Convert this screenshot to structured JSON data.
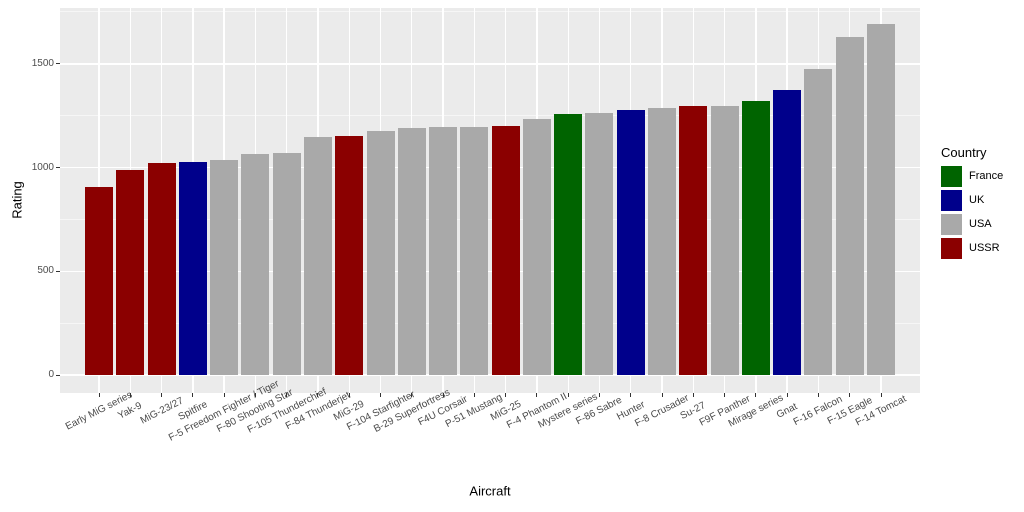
{
  "style": {
    "figure_bg": "#ffffff",
    "panel_bg": "#ebebeb",
    "grid_color": "#ffffff",
    "tick_label_color": "#4d4d4d",
    "axis_title_color": "#000000"
  },
  "chart_data": {
    "type": "bar",
    "title": "",
    "xlabel": "Aircraft",
    "ylabel": "Rating",
    "ylim": [
      0,
      1770
    ],
    "yticks": [
      0,
      500,
      1000,
      1500
    ],
    "yticks_minor": [
      250,
      750,
      1250,
      1750
    ],
    "grid": true,
    "legend": {
      "title": "Country",
      "position": "right",
      "entries": [
        {
          "label": "France",
          "color": "#006400"
        },
        {
          "label": "UK",
          "color": "#00008b"
        },
        {
          "label": "USA",
          "color": "#a9a9a9"
        },
        {
          "label": "USSR",
          "color": "#8b0000"
        }
      ]
    },
    "bars": [
      {
        "aircraft": "Early MiG series",
        "country": "USSR",
        "rating": 905
      },
      {
        "aircraft": "Yak-9",
        "country": "USSR",
        "rating": 990
      },
      {
        "aircraft": "MiG-23/27",
        "country": "USSR",
        "rating": 1020
      },
      {
        "aircraft": "Spitfire",
        "country": "UK",
        "rating": 1025
      },
      {
        "aircraft": "F-5 Freedom Fighter / Tiger",
        "country": "USA",
        "rating": 1035
      },
      {
        "aircraft": "F-80 Shooting Star",
        "country": "USA",
        "rating": 1065
      },
      {
        "aircraft": "F-105 Thunderchief",
        "country": "USA",
        "rating": 1070
      },
      {
        "aircraft": "F-84 Thunderjet",
        "country": "USA",
        "rating": 1145
      },
      {
        "aircraft": "MiG-29",
        "country": "USSR",
        "rating": 1150
      },
      {
        "aircraft": "F-104 Starfighter",
        "country": "USA",
        "rating": 1175
      },
      {
        "aircraft": "B-29 Superfortress",
        "country": "USA",
        "rating": 1190
      },
      {
        "aircraft": "F4U Corsair",
        "country": "USA",
        "rating": 1195
      },
      {
        "aircraft": "P-51 Mustang",
        "country": "USA",
        "rating": 1195
      },
      {
        "aircraft": "MiG-25",
        "country": "USSR",
        "rating": 1200
      },
      {
        "aircraft": "F-4 Phantom II",
        "country": "USA",
        "rating": 1235
      },
      {
        "aircraft": "Mystere series",
        "country": "France",
        "rating": 1260
      },
      {
        "aircraft": "F-86 Sabre",
        "country": "USA",
        "rating": 1265
      },
      {
        "aircraft": "Hunter",
        "country": "UK",
        "rating": 1275
      },
      {
        "aircraft": "F-8 Crusader",
        "country": "USA",
        "rating": 1285
      },
      {
        "aircraft": "Su-27",
        "country": "USSR",
        "rating": 1295
      },
      {
        "aircraft": "F9F Panther",
        "country": "USA",
        "rating": 1295
      },
      {
        "aircraft": "Mirage series",
        "country": "France",
        "rating": 1320
      },
      {
        "aircraft": "Gnat",
        "country": "UK",
        "rating": 1375
      },
      {
        "aircraft": "F-16 Falcon",
        "country": "USA",
        "rating": 1475
      },
      {
        "aircraft": "F-15 Eagle",
        "country": "USA",
        "rating": 1630
      },
      {
        "aircraft": "F-14 Tomcat",
        "country": "USA",
        "rating": 1690
      }
    ]
  }
}
